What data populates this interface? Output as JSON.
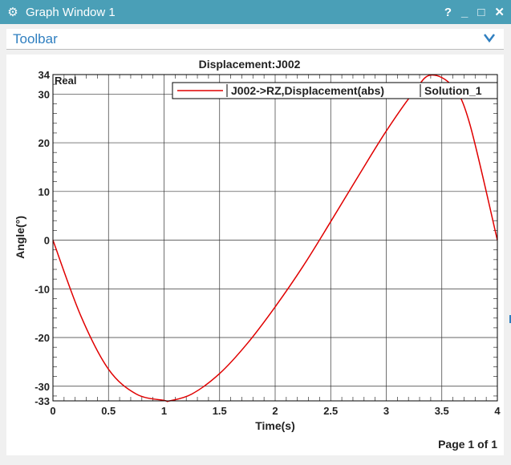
{
  "window": {
    "title": "Graph Window 1",
    "help": "?",
    "minimize": "_",
    "maximize": "□",
    "close": "✕"
  },
  "toolbar": {
    "label": "Toolbar"
  },
  "footer": {
    "page": "Page 1 of 1"
  },
  "chart_data": {
    "type": "line",
    "title": "Displacement:J002",
    "xlabel": "Time(s)",
    "ylabel": "Angle(°)",
    "corner_label": "Real",
    "xlim": [
      0,
      4
    ],
    "ylim": [
      -33,
      34
    ],
    "x_ticks": [
      0,
      0.5,
      1,
      1.5,
      2,
      2.5,
      3,
      3.5,
      4
    ],
    "y_ticks": [
      34,
      30,
      20,
      10,
      0,
      -10,
      -20,
      -30,
      -33
    ],
    "grid": true,
    "legend_position": "top-right",
    "series": [
      {
        "name": "J002->RZ,Displacement(abs)",
        "solution": "Solution_1",
        "color": "#e00000",
        "x": [
          0,
          0.25,
          0.5,
          0.75,
          1.0,
          1.05,
          1.25,
          1.5,
          1.75,
          2.0,
          2.25,
          2.5,
          2.75,
          3.0,
          3.25,
          3.4,
          3.6,
          3.75,
          4.0
        ],
        "y": [
          0,
          -15.5,
          -26.5,
          -31.6,
          -32.9,
          -33.0,
          -31.6,
          -27.4,
          -21.2,
          -13.7,
          -5.4,
          3.8,
          13.2,
          22.4,
          30.5,
          33.9,
          31.5,
          24.0,
          0
        ]
      }
    ]
  }
}
